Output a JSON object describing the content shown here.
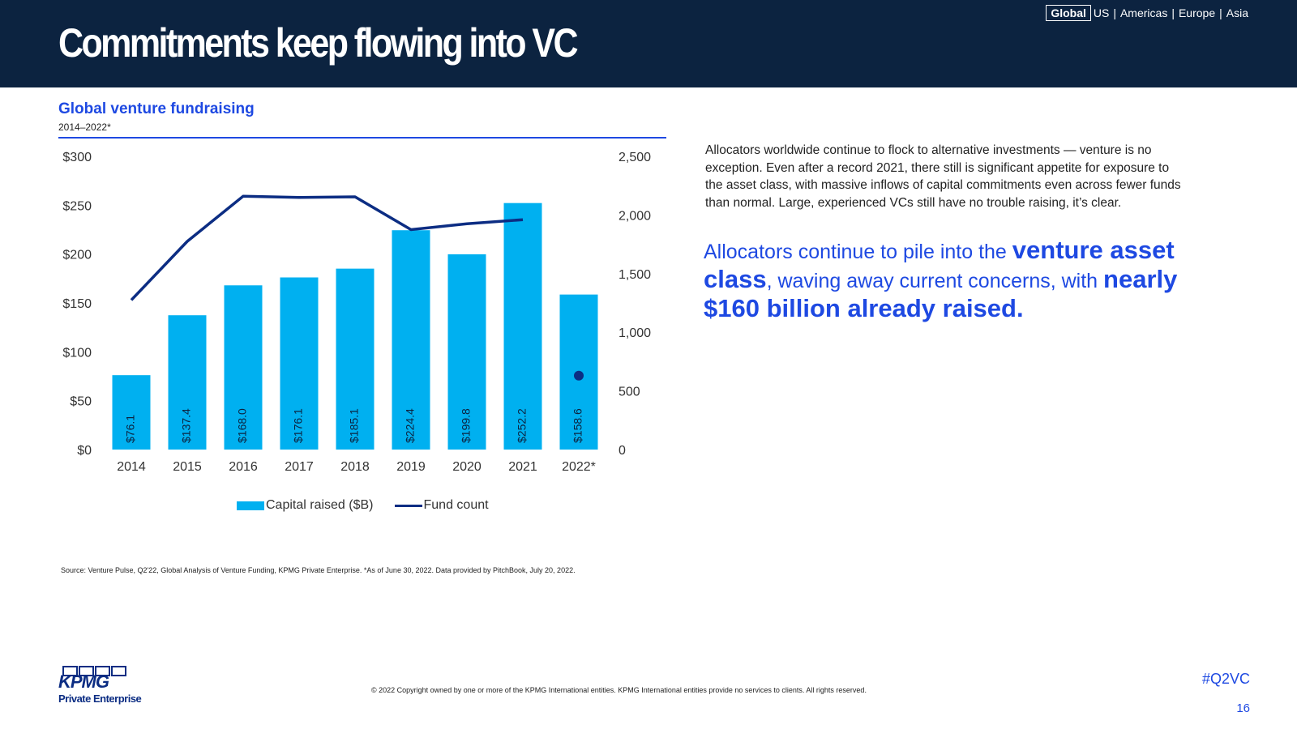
{
  "header": {
    "title": "Commitments keep flowing into VC",
    "regions": [
      "Global",
      "US",
      "Americas",
      "Europe",
      "Asia"
    ],
    "active_region": "Global",
    "separator": "|"
  },
  "chart_header": {
    "title": "Global venture fundraising",
    "subtitle": "2014–2022*"
  },
  "chart_data": {
    "type": "bar",
    "categories": [
      "2014",
      "2015",
      "2016",
      "2017",
      "2018",
      "2019",
      "2020",
      "2021",
      "2022*"
    ],
    "series": [
      {
        "name": "Capital raised ($B)",
        "type": "bar",
        "axis": "left",
        "values": [
          76.1,
          137.4,
          168.0,
          176.1,
          185.1,
          224.4,
          199.8,
          252.2,
          158.6
        ],
        "labels": [
          "$76.1",
          "$137.4",
          "$168.0",
          "$176.1",
          "$185.1",
          "$224.4",
          "$199.8",
          "$252.2",
          "$158.6"
        ],
        "color": "#00b0f0"
      },
      {
        "name": "Fund count",
        "type": "line",
        "axis": "right",
        "values": [
          1275,
          1775,
          2160,
          2150,
          2155,
          1875,
          1925,
          1960,
          630
        ],
        "color": "#0c2d83"
      }
    ],
    "y_left": {
      "ylim": [
        0,
        300
      ],
      "ticks": [
        "$0",
        "$50",
        "$100",
        "$150",
        "$200",
        "$250",
        "$300"
      ]
    },
    "y_right": {
      "ylim": [
        0,
        2500
      ],
      "ticks": [
        "0",
        "500",
        "1,000",
        "1,500",
        "2,000",
        "2,500"
      ]
    },
    "legend_position": "bottom",
    "grid": false
  },
  "legend": {
    "bar_label": "Capital raised ($B)",
    "line_label": "Fund count"
  },
  "body_text": "Allocators worldwide continue to flock to alternative investments — venture is no exception. Even after a record 2021, there still is significant appetite for exposure to the asset class, with massive inflows of capital commitments even across fewer funds than normal. Large, experienced VCs still have no trouble raising, it’s clear.",
  "callout": {
    "part1": "Allocators continue to pile into the ",
    "bold1": "venture asset class",
    "part2": ", waving away current concerns, with ",
    "bold2": "nearly $160 billion already raised."
  },
  "footer": {
    "source": "Source: Venture Pulse, Q2'22, Global Analysis of Venture Funding, KPMG Private Enterprise. *As of June 30, 2022. Data provided by PitchBook, July 20, 2022.",
    "copyright": "© 2022 Copyright owned by one or more of the KPMG International entities. KPMG International entities provide no services to clients. All rights reserved.",
    "hashtag": "#Q2VC",
    "page_number": "16"
  },
  "logo": {
    "word": "KPMG",
    "sub": "Private Enterprise"
  }
}
